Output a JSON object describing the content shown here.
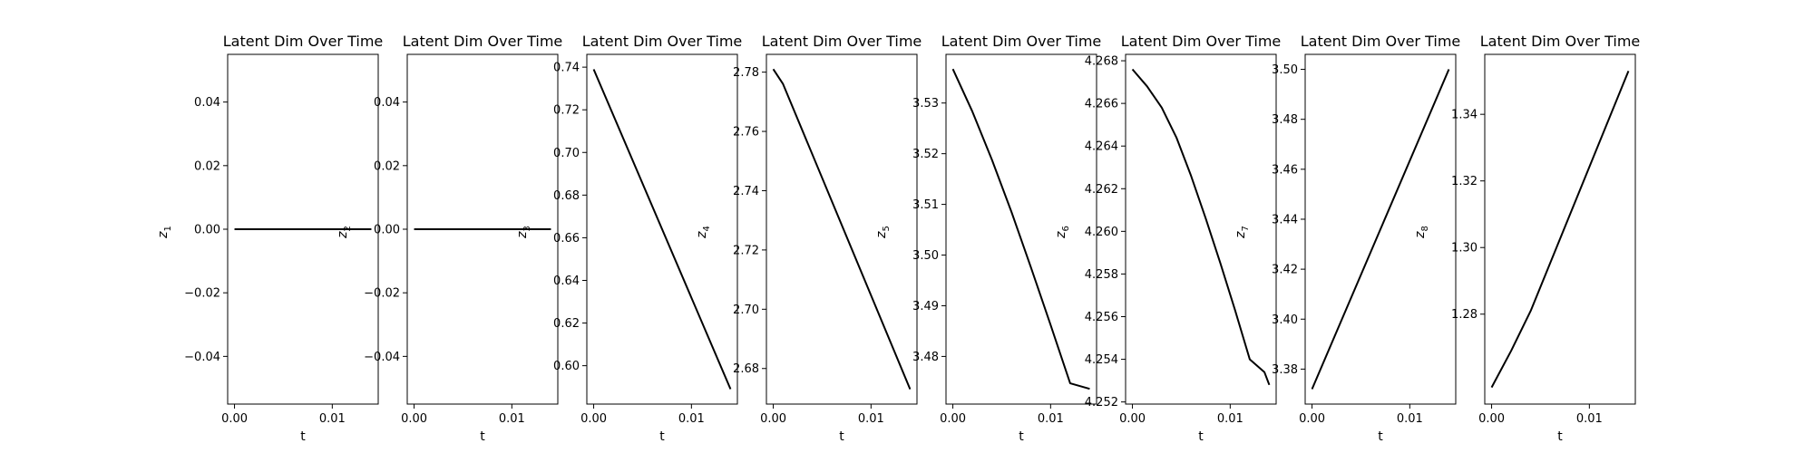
{
  "figure": {
    "background": "#ffffff",
    "line_color": "#000000"
  },
  "chart_data": [
    {
      "type": "line",
      "title": "Latent Dim Over Time",
      "xlabel": "t",
      "ylabel": "z",
      "ylabel_sub": "1",
      "x": [
        0.0,
        0.002,
        0.004,
        0.006,
        0.008,
        0.01,
        0.012,
        0.014
      ],
      "y": [
        0.0,
        0.0,
        0.0,
        0.0,
        0.0,
        0.0,
        0.0,
        0.0
      ],
      "xlim": [
        -0.0007,
        0.0147
      ],
      "ylim": [
        -0.055,
        0.055
      ],
      "xticks": [
        {
          "v": 0.0,
          "label": "0.00"
        },
        {
          "v": 0.01,
          "label": "0.01"
        }
      ],
      "yticks": [
        {
          "v": -0.04,
          "label": "−0.04"
        },
        {
          "v": -0.02,
          "label": "−0.02"
        },
        {
          "v": 0.0,
          "label": "0.00"
        },
        {
          "v": 0.02,
          "label": "0.02"
        },
        {
          "v": 0.04,
          "label": "0.04"
        }
      ]
    },
    {
      "type": "line",
      "title": "Latent Dim Over Time",
      "xlabel": "t",
      "ylabel": "z",
      "ylabel_sub": "2",
      "x": [
        0.0,
        0.002,
        0.004,
        0.006,
        0.008,
        0.01,
        0.012,
        0.014
      ],
      "y": [
        0.0,
        0.0,
        0.0,
        0.0,
        0.0,
        0.0,
        0.0,
        0.0
      ],
      "xlim": [
        -0.0007,
        0.0147
      ],
      "ylim": [
        -0.055,
        0.055
      ],
      "xticks": [
        {
          "v": 0.0,
          "label": "0.00"
        },
        {
          "v": 0.01,
          "label": "0.01"
        }
      ],
      "yticks": [
        {
          "v": -0.04,
          "label": "−0.04"
        },
        {
          "v": -0.02,
          "label": "−0.02"
        },
        {
          "v": 0.0,
          "label": "0.00"
        },
        {
          "v": 0.02,
          "label": "0.02"
        },
        {
          "v": 0.04,
          "label": "0.04"
        }
      ]
    },
    {
      "type": "line",
      "title": "Latent Dim Over Time",
      "xlabel": "t",
      "ylabel": "z",
      "ylabel_sub": "3",
      "x": [
        0.0,
        0.014
      ],
      "y": [
        0.739,
        0.589
      ],
      "xlim": [
        -0.0007,
        0.0147
      ],
      "ylim": [
        0.582,
        0.746
      ],
      "xticks": [
        {
          "v": 0.0,
          "label": "0.00"
        },
        {
          "v": 0.01,
          "label": "0.01"
        }
      ],
      "yticks": [
        {
          "v": 0.6,
          "label": "0.60"
        },
        {
          "v": 0.62,
          "label": "0.62"
        },
        {
          "v": 0.64,
          "label": "0.64"
        },
        {
          "v": 0.66,
          "label": "0.66"
        },
        {
          "v": 0.68,
          "label": "0.68"
        },
        {
          "v": 0.7,
          "label": "0.70"
        },
        {
          "v": 0.72,
          "label": "0.72"
        },
        {
          "v": 0.74,
          "label": "0.74"
        }
      ]
    },
    {
      "type": "line",
      "title": "Latent Dim Over Time",
      "xlabel": "t",
      "ylabel": "z",
      "ylabel_sub": "4",
      "x": [
        0.0,
        0.001,
        0.014
      ],
      "y": [
        2.781,
        2.776,
        2.673
      ],
      "xlim": [
        -0.0007,
        0.0147
      ],
      "ylim": [
        2.668,
        2.786
      ],
      "xticks": [
        {
          "v": 0.0,
          "label": "0.00"
        },
        {
          "v": 0.01,
          "label": "0.01"
        }
      ],
      "yticks": [
        {
          "v": 2.68,
          "label": "2.68"
        },
        {
          "v": 2.7,
          "label": "2.70"
        },
        {
          "v": 2.72,
          "label": "2.72"
        },
        {
          "v": 2.74,
          "label": "2.74"
        },
        {
          "v": 2.76,
          "label": "2.76"
        },
        {
          "v": 2.78,
          "label": "2.78"
        }
      ]
    },
    {
      "type": "line",
      "title": "Latent Dim Over Time",
      "xlabel": "t",
      "ylabel": "z",
      "ylabel_sub": "5",
      "x": [
        0.0,
        0.002,
        0.004,
        0.006,
        0.008,
        0.01,
        0.012,
        0.014
      ],
      "y": [
        3.5367,
        3.5283,
        3.5188,
        3.5085,
        3.4975,
        3.4862,
        3.4747,
        3.4736
      ],
      "xlim": [
        -0.0007,
        0.0147
      ],
      "ylim": [
        3.4706,
        3.5396
      ],
      "xticks": [
        {
          "v": 0.0,
          "label": "0.00"
        },
        {
          "v": 0.01,
          "label": "0.01"
        }
      ],
      "yticks": [
        {
          "v": 3.48,
          "label": "3.48"
        },
        {
          "v": 3.49,
          "label": "3.49"
        },
        {
          "v": 3.5,
          "label": "3.50"
        },
        {
          "v": 3.51,
          "label": "3.51"
        },
        {
          "v": 3.52,
          "label": "3.52"
        },
        {
          "v": 3.53,
          "label": "3.53"
        }
      ]
    },
    {
      "type": "line",
      "title": "Latent Dim Over Time",
      "xlabel": "t",
      "ylabel": "z",
      "ylabel_sub": "6",
      "x": [
        0.0,
        0.0015,
        0.003,
        0.0045,
        0.006,
        0.0075,
        0.009,
        0.0105,
        0.012,
        0.0135,
        0.014
      ],
      "y": [
        4.2676,
        4.2668,
        4.2658,
        4.2644,
        4.2626,
        4.2606,
        4.2585,
        4.2563,
        4.254,
        4.2534,
        4.2528
      ],
      "xlim": [
        -0.0007,
        0.0147
      ],
      "ylim": [
        4.2519,
        4.2683
      ],
      "xticks": [
        {
          "v": 0.0,
          "label": "0.00"
        },
        {
          "v": 0.01,
          "label": "0.01"
        }
      ],
      "yticks": [
        {
          "v": 4.252,
          "label": "4.252"
        },
        {
          "v": 4.254,
          "label": "4.254"
        },
        {
          "v": 4.256,
          "label": "4.256"
        },
        {
          "v": 4.258,
          "label": "4.258"
        },
        {
          "v": 4.26,
          "label": "4.260"
        },
        {
          "v": 4.262,
          "label": "4.262"
        },
        {
          "v": 4.264,
          "label": "4.264"
        },
        {
          "v": 4.266,
          "label": "4.266"
        },
        {
          "v": 4.268,
          "label": "4.268"
        }
      ]
    },
    {
      "type": "line",
      "title": "Latent Dim Over Time",
      "xlabel": "t",
      "ylabel": "z",
      "ylabel_sub": "7",
      "x": [
        0.0,
        0.014
      ],
      "y": [
        3.372,
        3.5
      ],
      "xlim": [
        -0.0007,
        0.0147
      ],
      "ylim": [
        3.366,
        3.506
      ],
      "xticks": [
        {
          "v": 0.0,
          "label": "0.00"
        },
        {
          "v": 0.01,
          "label": "0.01"
        }
      ],
      "yticks": [
        {
          "v": 3.38,
          "label": "3.38"
        },
        {
          "v": 3.4,
          "label": "3.40"
        },
        {
          "v": 3.42,
          "label": "3.42"
        },
        {
          "v": 3.44,
          "label": "3.44"
        },
        {
          "v": 3.46,
          "label": "3.46"
        },
        {
          "v": 3.48,
          "label": "3.48"
        },
        {
          "v": 3.5,
          "label": "3.50"
        }
      ]
    },
    {
      "type": "line",
      "title": "Latent Dim Over Time",
      "xlabel": "t",
      "ylabel": "z",
      "ylabel_sub": "8",
      "x": [
        0.0,
        0.002,
        0.004,
        0.014
      ],
      "y": [
        1.258,
        1.269,
        1.281,
        1.353
      ],
      "xlim": [
        -0.0007,
        0.0147
      ],
      "ylim": [
        1.253,
        1.358
      ],
      "xticks": [
        {
          "v": 0.0,
          "label": "0.00"
        },
        {
          "v": 0.01,
          "label": "0.01"
        }
      ],
      "yticks": [
        {
          "v": 1.28,
          "label": "1.28"
        },
        {
          "v": 1.3,
          "label": "1.30"
        },
        {
          "v": 1.32,
          "label": "1.32"
        },
        {
          "v": 1.34,
          "label": "1.34"
        }
      ]
    }
  ]
}
